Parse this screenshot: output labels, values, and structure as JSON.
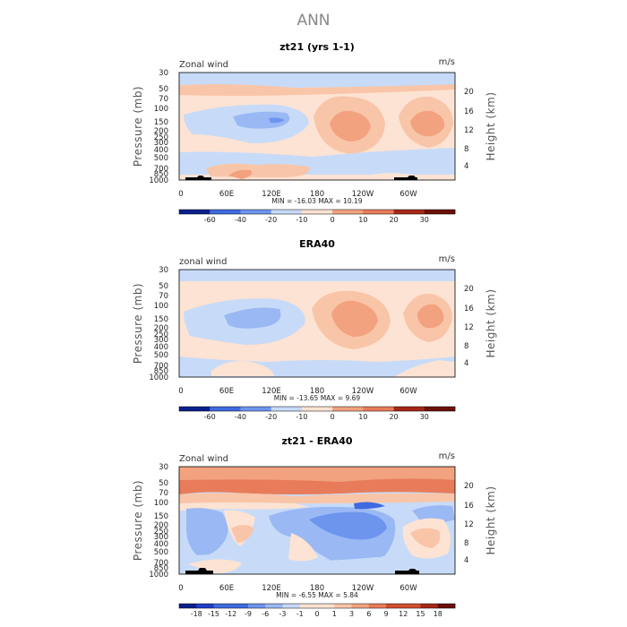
{
  "page_title": "ANN",
  "colors": {
    "n6": "#0a1f8c",
    "n5": "#1f3fc8",
    "n4": "#3f6ae0",
    "n3": "#6d95ee",
    "n2": "#9ab8f4",
    "n1": "#c7dbf8",
    "p1": "#fde3d3",
    "p2": "#f9c5a8",
    "p3": "#f2a27f",
    "p4": "#e87c5a",
    "p5": "#d2502f",
    "p6": "#a52818",
    "p7": "#6b1008",
    "terrain": "#000000"
  },
  "chart_data": [
    {
      "type": "heatmap",
      "title": "zt21 (yrs 1-1)",
      "corner_left": "Zonal wind",
      "corner_right": "m/s",
      "ylabel": "Pressure (mb)",
      "ylabel_right": "Height (km)",
      "y_ticks": [
        "30",
        "50",
        "70",
        "100",
        "150",
        "200",
        "250",
        "300",
        "400",
        "500",
        "700",
        "850",
        "1000"
      ],
      "y_ticks_right": [
        "20",
        "16",
        "12",
        "8",
        "4"
      ],
      "x_ticks": [
        "0",
        "60E",
        "120E",
        "180",
        "120W",
        "60W"
      ],
      "min_max_text": "MIN = -16.03   MAX = 10.19",
      "min": -16.03,
      "max": 10.19,
      "colorbar_labels": [
        "-60",
        "-40",
        "-20",
        "-10",
        "0",
        "10",
        "20",
        "30"
      ],
      "has_terrain": true
    },
    {
      "type": "heatmap",
      "title": "ERA40",
      "corner_left": "zonal wind",
      "corner_right": "m/s",
      "ylabel": "Pressure (mb)",
      "ylabel_right": "Height (km)",
      "y_ticks": [
        "30",
        "50",
        "70",
        "100",
        "150",
        "200",
        "250",
        "300",
        "400",
        "500",
        "700",
        "850",
        "1000"
      ],
      "y_ticks_right": [
        "20",
        "16",
        "12",
        "8",
        "4"
      ],
      "x_ticks": [
        "0",
        "60E",
        "120E",
        "180",
        "120W",
        "60W"
      ],
      "min_max_text": "MIN = -13.65   MAX =  9.69",
      "min": -13.65,
      "max": 9.69,
      "colorbar_labels": [
        "-60",
        "-40",
        "-20",
        "-10",
        "0",
        "10",
        "20",
        "30"
      ],
      "has_terrain": false
    },
    {
      "type": "heatmap",
      "title": "zt21 - ERA40",
      "corner_left": "Zonal wind",
      "corner_right": "m/s",
      "ylabel": "Pressure (mb)",
      "ylabel_right": "Height (km)",
      "y_ticks": [
        "30",
        "50",
        "70",
        "100",
        "150",
        "200",
        "250",
        "300",
        "400",
        "500",
        "700",
        "850",
        "1000"
      ],
      "y_ticks_right": [
        "20",
        "16",
        "12",
        "8",
        "4"
      ],
      "x_ticks": [
        "0",
        "60E",
        "120E",
        "180",
        "120W",
        "60W"
      ],
      "min_max_text": "MIN =  -6.55   MAX =   5.84",
      "min": -6.55,
      "max": 5.84,
      "colorbar_labels": [
        "-18",
        "-15",
        "-12",
        "-9",
        "-6",
        "-3",
        "-1",
        "0",
        "1",
        "3",
        "6",
        "9",
        "12",
        "15",
        "18"
      ],
      "has_terrain": true
    }
  ]
}
